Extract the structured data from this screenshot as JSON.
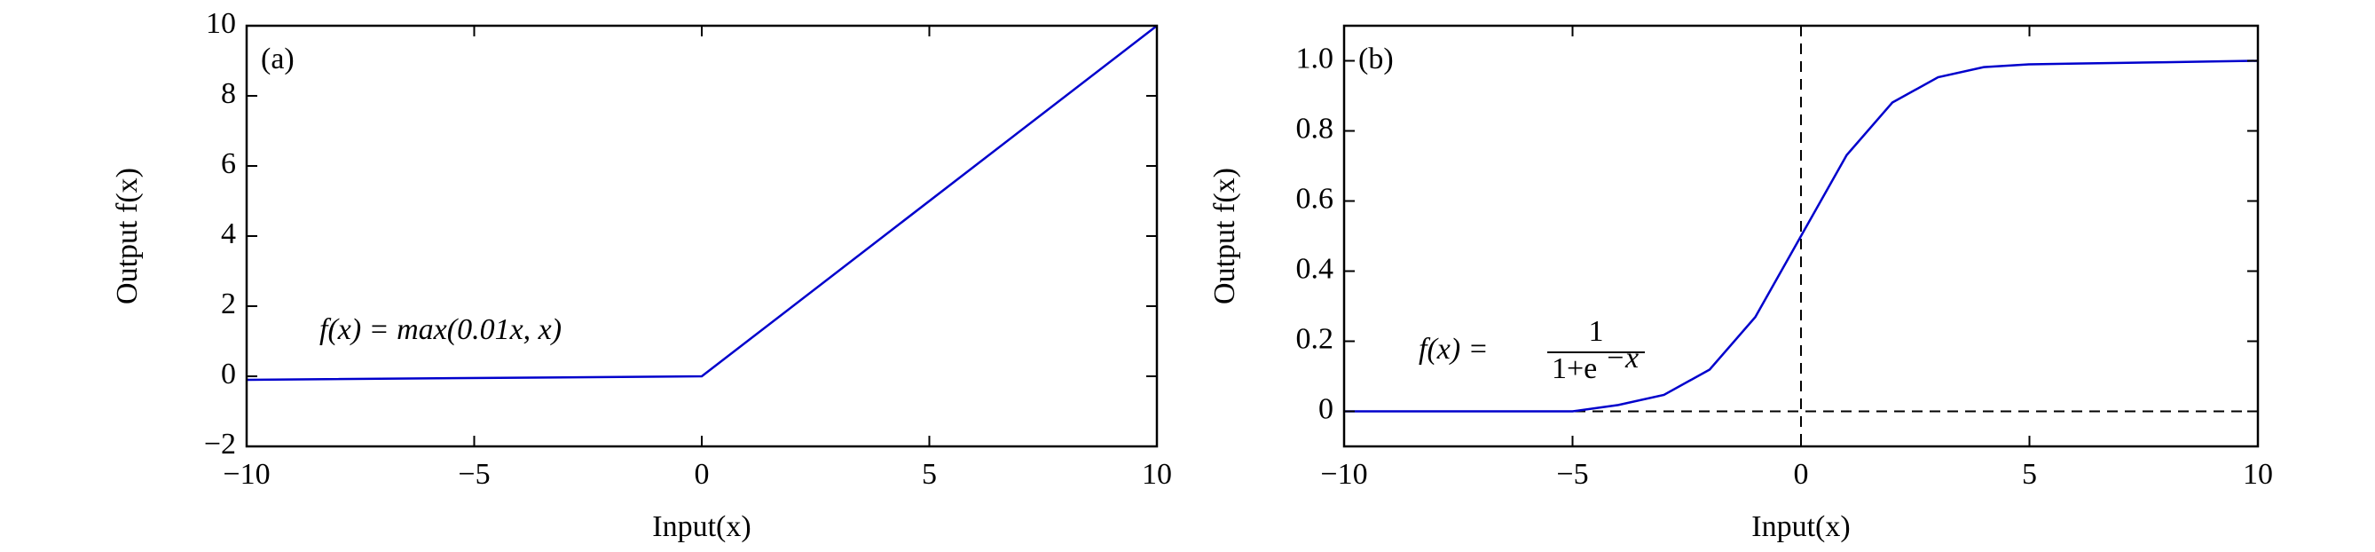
{
  "chart_data": [
    {
      "type": "line",
      "panel_label": "(a)",
      "annotation": {
        "text": "f(x) = max(0.01x, x)"
      },
      "x_label": "Input(x)",
      "y_label": "Output  f(x)",
      "x": [
        -10,
        0,
        10
      ],
      "series": [
        {
          "color": "#0000cc",
          "values": [
            -0.1,
            0,
            10
          ]
        }
      ],
      "xlim": [
        -10,
        10
      ],
      "xticks": [
        {
          "value": -10,
          "label": "−10"
        },
        {
          "value": -5,
          "label": "−5"
        },
        0,
        5,
        10
      ],
      "ylim": [
        -2,
        10
      ],
      "yticks": [
        {
          "value": -2,
          "label": "−2"
        },
        0,
        2,
        4,
        6,
        8,
        10
      ]
    },
    {
      "type": "line",
      "panel_label": "(b)",
      "annotation": {
        "text": "f(x) =",
        "numerator": "1",
        "denominator": "1+e",
        "exponent": "−x"
      },
      "x_label": "Input(x)",
      "y_label": "Output  f(x)",
      "x": [
        -10,
        -9,
        -8,
        -7,
        -6,
        -5,
        -4,
        -3,
        -2,
        -1,
        0,
        1,
        2,
        3,
        4,
        5,
        6,
        7,
        8,
        9,
        10
      ],
      "series": [
        {
          "color": "#0000cc",
          "values": [
            0,
            0,
            0,
            0,
            0,
            0,
            0.018,
            0.047,
            0.119,
            0.269,
            0.5,
            0.731,
            0.881,
            0.953,
            0.982,
            0.99,
            0.992,
            0.994,
            0.996,
            0.998,
            1
          ]
        }
      ],
      "xlim": [
        -10,
        10
      ],
      "xticks": [
        {
          "value": -10,
          "label": "−10"
        },
        {
          "value": -5,
          "label": "−5"
        },
        0,
        5,
        10
      ],
      "ylim": [
        -0.1,
        1.1
      ],
      "yticks": [
        0,
        0.2,
        0.4,
        0.6,
        0.8,
        {
          "value": 1,
          "label": "1.0"
        }
      ],
      "ref_lines": {
        "x": 0,
        "y": 0
      }
    }
  ]
}
